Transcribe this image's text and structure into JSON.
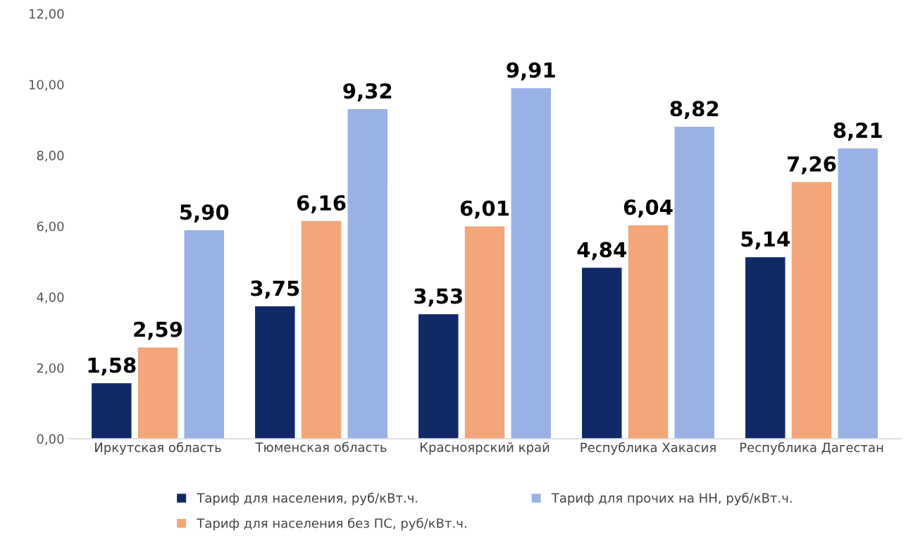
{
  "chart_data": {
    "type": "bar",
    "categories": [
      "Иркутская область",
      "Тюменская область",
      "Красноярский край",
      "Республика Хакасия",
      "Республика Дагестан"
    ],
    "series": [
      {
        "name": "Тариф для населения, руб/кВт.ч.",
        "color": "#102a68",
        "values": [
          1.58,
          3.75,
          3.53,
          4.84,
          5.14
        ],
        "value_labels": [
          "1,58",
          "3,75",
          "3,53",
          "4,84",
          "5,14"
        ]
      },
      {
        "name": "Тариф для населения без ПС, руб/кВт.ч.",
        "color": "#f2a679",
        "values": [
          2.59,
          6.16,
          6.01,
          6.04,
          7.26
        ],
        "value_labels": [
          "2,59",
          "6,16",
          "6,01",
          "6,04",
          "7,26"
        ]
      },
      {
        "name": "Тариф для прочих на НН, руб/кВт.ч.",
        "color": "#9ab1e6",
        "values": [
          5.9,
          9.32,
          9.91,
          8.82,
          8.21
        ],
        "value_labels": [
          "5,90",
          "9,32",
          "9,91",
          "8,82",
          "8,21"
        ]
      }
    ],
    "ylim": [
      0,
      12
    ],
    "yticks": [
      {
        "value": 0,
        "label": "0,00"
      },
      {
        "value": 2,
        "label": "2,00"
      },
      {
        "value": 4,
        "label": "4,00"
      },
      {
        "value": 6,
        "label": "6,00"
      },
      {
        "value": 8,
        "label": "8,00"
      },
      {
        "value": 10,
        "label": "10,00"
      },
      {
        "value": 12,
        "label": "12,00"
      }
    ],
    "grid": false,
    "legend": "bottom"
  }
}
